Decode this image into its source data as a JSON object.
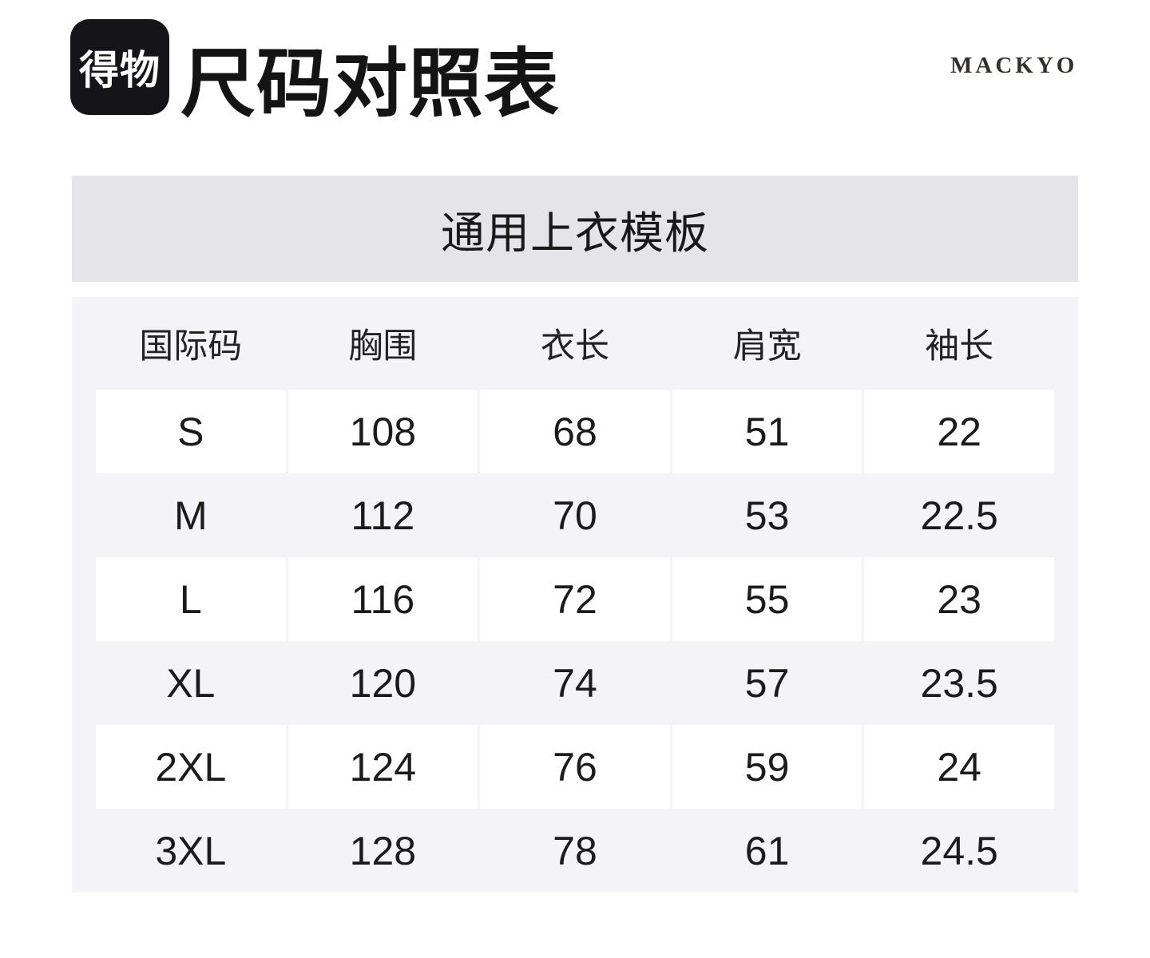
{
  "header": {
    "logo_text": "得物",
    "title": "尺码对照表",
    "brand": "MACKYO"
  },
  "banner": {
    "label": "通用上衣模板"
  },
  "table": {
    "columns": [
      "国际码",
      "胸围",
      "衣长",
      "肩宽",
      "袖长"
    ],
    "rows": [
      [
        "S",
        "108",
        "68",
        "51",
        "22"
      ],
      [
        "M",
        "112",
        "70",
        "53",
        "22.5"
      ],
      [
        "L",
        "116",
        "72",
        "55",
        "23"
      ],
      [
        "XL",
        "120",
        "74",
        "57",
        "23.5"
      ],
      [
        "2XL",
        "124",
        "76",
        "59",
        "24"
      ],
      [
        "3XL",
        "128",
        "78",
        "61",
        "24.5"
      ]
    ]
  },
  "colors": {
    "logo_bg": "#141419",
    "banner_bg": "#e5e4e9",
    "table_bg": "#f4f4f8",
    "cell_bg": "#ffffff",
    "text": "#1b1b1e"
  }
}
